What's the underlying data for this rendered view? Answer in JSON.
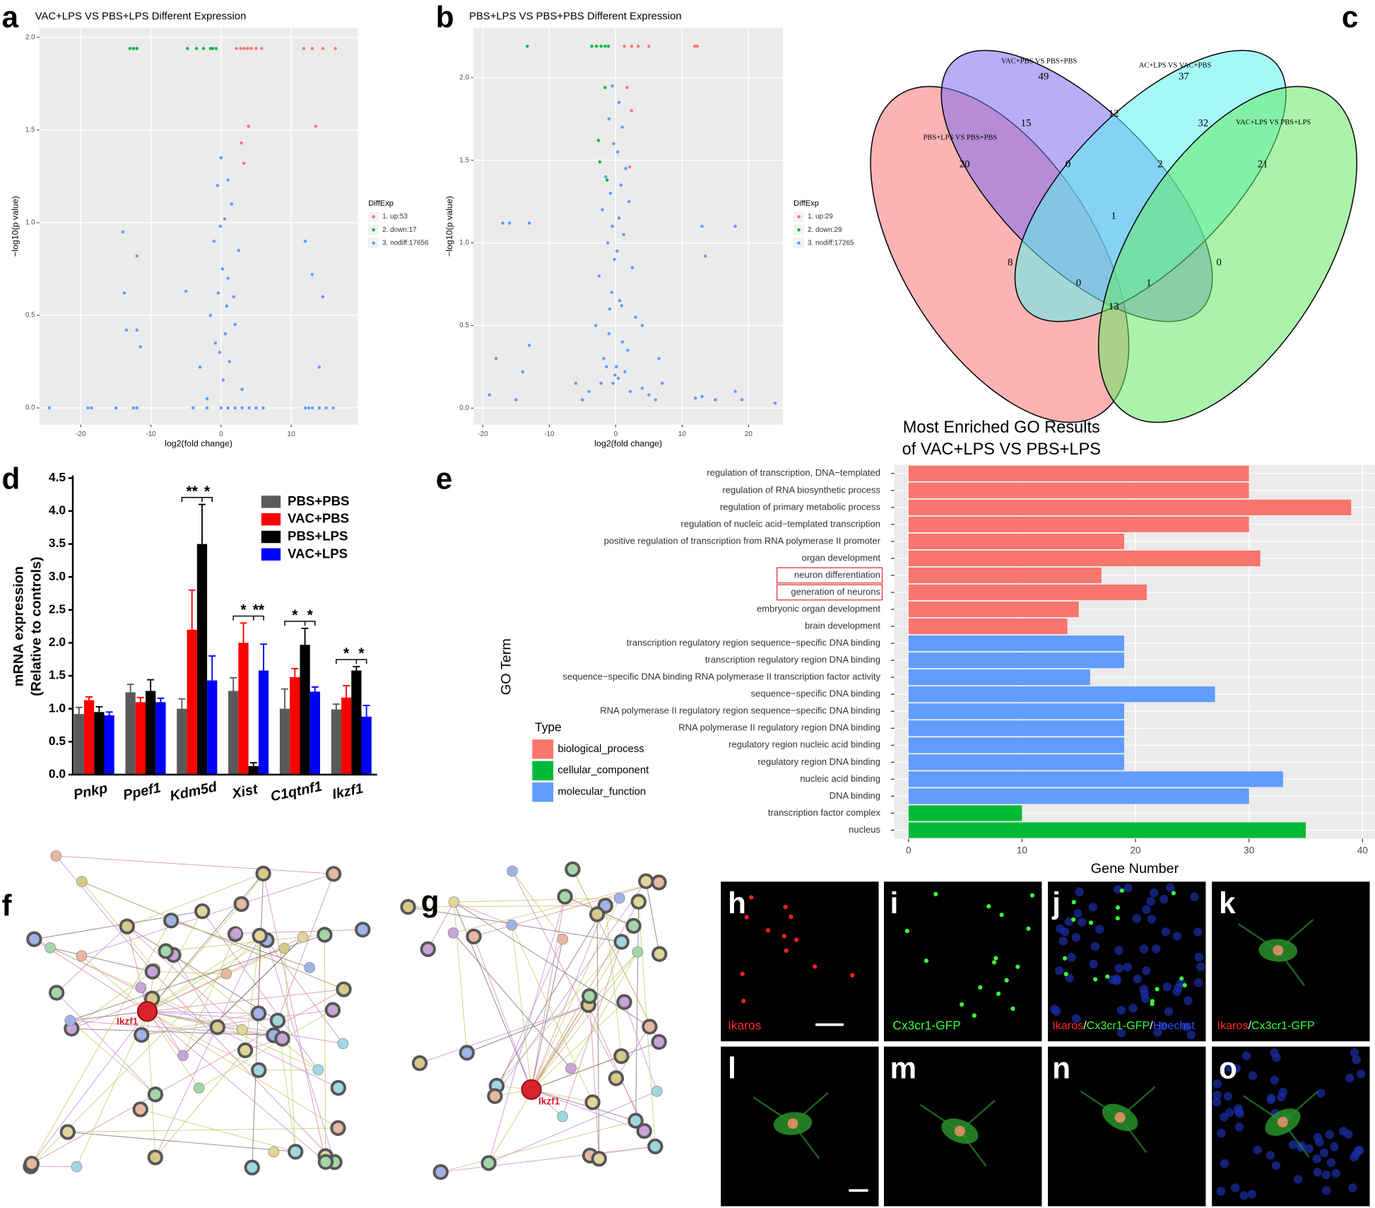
{
  "chart_data": [
    {
      "type": "scatter",
      "title": "VAC+LPS VS PBS+LPS  Different Expression",
      "xlabel": "log2(fold change)",
      "ylabel": "−log10(p value)",
      "xlim": [
        -25.9,
        19.5
      ],
      "ylim": [
        -0.09,
        2.05
      ],
      "xticks": [
        -20,
        -10,
        0,
        10
      ],
      "yticks": [
        {
          "value": 0,
          "label": "0.0"
        },
        {
          "value": 0.5,
          "label": "0.5"
        },
        {
          "value": 1,
          "label": "1.0"
        },
        {
          "value": 1.5,
          "label": "1.5"
        },
        {
          "value": 2,
          "label": "2.0"
        }
      ],
      "grid": true,
      "legend_title": "DiffExp",
      "series": [
        {
          "name": "1. up:53",
          "color": "#f8766d",
          "x": [
            2.2,
            2.8,
            3.3,
            3.8,
            4.3,
            5,
            5.8,
            11.8,
            13,
            14.5,
            16.3,
            3.9,
            13.5,
            2.9,
            3.25
          ],
          "values": [
            1.94,
            1.94,
            1.94,
            1.94,
            1.94,
            1.94,
            1.94,
            1.94,
            1.94,
            1.94,
            1.94,
            1.52,
            1.52,
            1.43,
            1.32
          ]
        },
        {
          "name": "2. down:17",
          "color": "#00ba38",
          "x": [
            -13,
            -12.5,
            -12,
            -4.8,
            -3.5,
            -2.5,
            -1.5,
            -0.7,
            -1.2
          ],
          "values": [
            1.94,
            1.94,
            1.94,
            1.94,
            1.94,
            1.94,
            1.94,
            1.94,
            1.94
          ]
        },
        {
          "name": "3. nodiff:17656",
          "color": "#619cff",
          "x": [
            -24.5,
            -19,
            -18.5,
            -15,
            -12.5,
            -12,
            -14,
            -12,
            -13.8,
            -13.5,
            -12,
            -11.5,
            -5,
            -3,
            -1.5,
            -1,
            -0.5,
            0,
            0.5,
            1,
            1.5,
            2,
            2.5,
            -0.2,
            0.3,
            0.8,
            -0.8,
            1.2,
            1.8,
            -2,
            3,
            4,
            5,
            6,
            -4,
            -2,
            0,
            1,
            2,
            3,
            12,
            12.5,
            13,
            14,
            15,
            16,
            12,
            13,
            14.5,
            14,
            0.2,
            -0.4,
            0.6,
            1,
            -0.1
          ],
          "values": [
            0,
            0,
            0,
            0,
            0,
            0,
            0.95,
            0.82,
            0.62,
            0.42,
            0.42,
            0.33,
            0.63,
            0.22,
            0.5,
            0.9,
            1.2,
            1.35,
            1.02,
            0.7,
            1.1,
            0.45,
            0.85,
            0.3,
            0.15,
            0.55,
            0.35,
            0.25,
            0.6,
            0.05,
            0.1,
            0,
            0,
            0,
            0,
            0,
            0,
            0,
            0,
            0,
            0,
            0,
            0,
            0,
            0,
            0,
            0.9,
            0.72,
            0.6,
            0.22,
            0.75,
            0.62,
            0.4,
            1.23,
            0.98
          ]
        }
      ]
    },
    {
      "type": "scatter",
      "title": "PBS+LPS VS PBS+PBS Different Expression",
      "xlabel": "log2(fold change)",
      "ylabel": "−log10(p value)",
      "xlim": [
        -21.4,
        25.2
      ],
      "ylim": [
        -0.1,
        2.3
      ],
      "xticks": [
        -20,
        -10,
        0,
        10,
        20
      ],
      "yticks": [
        {
          "value": 0,
          "label": "0.0"
        },
        {
          "value": 0.5,
          "label": "0.5"
        },
        {
          "value": 1,
          "label": "1.0"
        },
        {
          "value": 1.5,
          "label": "1.5"
        },
        {
          "value": 2,
          "label": "2.0"
        }
      ],
      "grid": true,
      "legend_title": "DiffExp",
      "series": [
        {
          "name": "1. up:29",
          "color": "#f8766d",
          "x": [
            1.3,
            2.4,
            3.4,
            5,
            11.9,
            12.3,
            1.7,
            2.4,
            2.1
          ],
          "values": [
            2.19,
            2.19,
            2.19,
            2.19,
            2.19,
            2.19,
            1.94,
            1.8,
            1.46
          ]
        },
        {
          "name": "2. down:29",
          "color": "#00ba38",
          "x": [
            -13.3,
            -3.6,
            -2.9,
            -2.2,
            -1.6,
            -1.1,
            -1.6,
            -2.6,
            -2.4,
            -1.3
          ],
          "values": [
            2.19,
            2.19,
            2.19,
            2.19,
            2.19,
            2.19,
            1.94,
            1.62,
            1.49,
            1.38
          ]
        },
        {
          "name": "3. nodiff:17265",
          "color": "#619cff",
          "x": [
            -0.5,
            0.5,
            -1,
            1,
            -1.5,
            1.5,
            -2,
            2,
            -0.3,
            0.3,
            -0.8,
            0.8,
            -1.2,
            1.2,
            -2.5,
            2.5,
            -3,
            3,
            -0.2,
            0.2,
            -0.6,
            0.6,
            -1,
            1,
            -1.8,
            1.8,
            -4,
            4,
            -5,
            5,
            -0.1,
            0.1,
            -0.4,
            0.4,
            -0.9,
            0.9,
            -0.5,
            0.5,
            -1.4,
            1.4,
            -2.2,
            2.2,
            -17,
            -16,
            -13,
            13,
            18,
            13.5,
            -14,
            -13,
            -18,
            -19,
            -15,
            12,
            13,
            15,
            18,
            19,
            24,
            7,
            6.5,
            -6,
            4,
            6
          ],
          "values": [
            1.95,
            1.85,
            1.75,
            1.7,
            1.4,
            1.45,
            1.2,
            1.25,
            1.6,
            1.55,
            1.3,
            1.35,
            1.0,
            1.05,
            0.8,
            0.85,
            0.5,
            0.55,
            0.9,
            0.95,
            0.7,
            0.65,
            0.45,
            0.4,
            0.3,
            0.35,
            0.1,
            0.12,
            0.05,
            0.08,
            0.2,
            0.25,
            0.15,
            0.18,
            0.6,
            0.62,
            1.1,
            1.15,
            0.25,
            0.22,
            0.15,
            0.1,
            1.12,
            1.12,
            1.12,
            1.1,
            1.1,
            0.92,
            0.22,
            0.38,
            0.3,
            0.08,
            0.05,
            0.06,
            0.07,
            0.05,
            0.1,
            0.05,
            0.03,
            0.15,
            0.3,
            0.15,
            0.5,
            0.05
          ]
        }
      ]
    },
    {
      "type": "venn",
      "sets": [
        "PBS+LPS VS PBS+PBS",
        "VAC+PBS VS PBS+PBS",
        "AC+LPS VS VAC+PBS",
        "VAC+LPS VS PBS+LPS"
      ],
      "colors": [
        "#f87474",
        "#7b6cf0",
        "#5cf2f2",
        "#66ea66"
      ],
      "counts": [
        20,
        49,
        37,
        21,
        15,
        12,
        32,
        0,
        2,
        1,
        8,
        0,
        0,
        1,
        13
      ]
    },
    {
      "type": "bar",
      "ylabel": [
        "mRNA expression",
        "(Relative to controls)"
      ],
      "categories": [
        "Pnkp",
        "Ppef1",
        "Kdm5d",
        "Xist",
        "C1qtnf1",
        "Ikzf1"
      ],
      "ylim": [
        0,
        4.5
      ],
      "yticks": [
        {
          "value": 0,
          "label": "0.0"
        },
        {
          "value": 0.5,
          "label": "0.5"
        },
        {
          "value": 1,
          "label": "1.0"
        },
        {
          "value": 1.5,
          "label": "1.5"
        },
        {
          "value": 2,
          "label": "2.0"
        },
        {
          "value": 2.5,
          "label": "2.5"
        },
        {
          "value": 3,
          "label": "3.0"
        },
        {
          "value": 3.5,
          "label": "3.5"
        },
        {
          "value": 4,
          "label": "4.0"
        },
        {
          "value": 4.5,
          "label": "4.5"
        }
      ],
      "series": [
        {
          "name": "PBS+PBS",
          "color": "#5a5a5a",
          "values": [
            0.92,
            1.25,
            1.0,
            1.27,
            1.0,
            0.99
          ],
          "errors": [
            0.1,
            0.12,
            0.15,
            0.2,
            0.3,
            0.08
          ]
        },
        {
          "name": "VAC+PBS",
          "color": "#ff0000",
          "values": [
            1.13,
            1.1,
            2.2,
            2.0,
            1.48,
            1.17
          ],
          "errors": [
            0.05,
            0.07,
            0.6,
            0.3,
            0.13,
            0.18
          ]
        },
        {
          "name": "PBS+LPS",
          "color": "#000000",
          "values": [
            0.95,
            1.27,
            3.5,
            0.13,
            1.97,
            1.58
          ],
          "errors": [
            0.08,
            0.17,
            0.6,
            0.05,
            0.25,
            0.06
          ]
        },
        {
          "name": "VAC+LPS",
          "color": "#0000ff",
          "values": [
            0.9,
            1.1,
            1.43,
            1.58,
            1.26,
            0.88
          ],
          "errors": [
            0.05,
            0.06,
            0.37,
            0.4,
            0.07,
            0.17
          ]
        }
      ],
      "significance": [
        null,
        null,
        [
          "**",
          "*"
        ],
        [
          "*",
          "**"
        ],
        [
          "*",
          "*"
        ],
        [
          "*",
          "*"
        ]
      ]
    },
    {
      "type": "barh",
      "title": [
        "Most Enriched GO Results",
        "of VAC+LPS VS PBS+LPS"
      ],
      "xlabel": "Gene Number",
      "ylabel": "GO Term",
      "legend_title": "Type",
      "xlim": [
        -1.24,
        41.1
      ],
      "xticks": [
        0,
        10,
        20,
        30,
        40
      ],
      "grid": true,
      "categories": [
        "regulation of transcription, DNA−templated",
        "regulation of RNA biosynthetic process",
        "regulation of primary metabolic process",
        "regulation of nucleic acid−templated transcription",
        "positive regulation of transcription from RNA polymerase II promoter",
        "organ development",
        "neuron differentiation",
        "generation of neurons",
        "embryonic organ development",
        "brain development",
        "transcription regulatory region sequence−specific DNA binding",
        "transcription regulatory region DNA binding",
        "sequence−specific DNA binding RNA polymerase II transcription factor activity",
        "sequence−specific DNA binding",
        "RNA polymerase II regulatory region sequence−specific DNA binding",
        "RNA polymerase II regulatory region DNA binding",
        "regulatory region nucleic acid binding",
        "regulatory region DNA binding",
        "nucleic acid binding",
        "DNA binding",
        "transcription factor complex",
        "nucleus"
      ],
      "series": [
        {
          "name": "biological_process",
          "color": "#f8766d",
          "values": [
            30,
            30,
            39,
            30,
            19,
            31,
            17,
            21,
            15,
            14,
            null,
            null,
            null,
            null,
            null,
            null,
            null,
            null,
            null,
            null,
            null,
            null
          ]
        },
        {
          "name": "cellular_component",
          "color": "#00ba38",
          "values": [
            null,
            null,
            null,
            null,
            null,
            null,
            null,
            null,
            null,
            null,
            null,
            null,
            null,
            null,
            null,
            null,
            null,
            null,
            null,
            null,
            10,
            35
          ]
        },
        {
          "name": "molecular_function",
          "color": "#619cff",
          "values": [
            null,
            null,
            null,
            null,
            null,
            null,
            null,
            null,
            null,
            null,
            19,
            19,
            16,
            27,
            19,
            19,
            19,
            19,
            33,
            30,
            null,
            null
          ]
        }
      ]
    }
  ],
  "panel_labels": [
    "a",
    "b",
    "c",
    "d",
    "e",
    "f",
    "g",
    "h",
    "i",
    "j",
    "k",
    "l",
    "m",
    "n",
    "o"
  ],
  "networks": {
    "f": {
      "hub_label": "Ikzf1"
    },
    "g": {
      "hub_label": "Ikzf1"
    }
  },
  "micrographs": {
    "h": {
      "label": "Ikaros"
    },
    "i": {
      "label": "Cx3cr1-GFP"
    },
    "j": {
      "label_parts": [
        "Ikaros",
        "/",
        "Cx3cr1-GFP",
        "/",
        "Hoechst"
      ]
    },
    "k": {
      "label_parts": [
        "Ikaros",
        "/",
        "Cx3cr1-GFP"
      ]
    }
  }
}
